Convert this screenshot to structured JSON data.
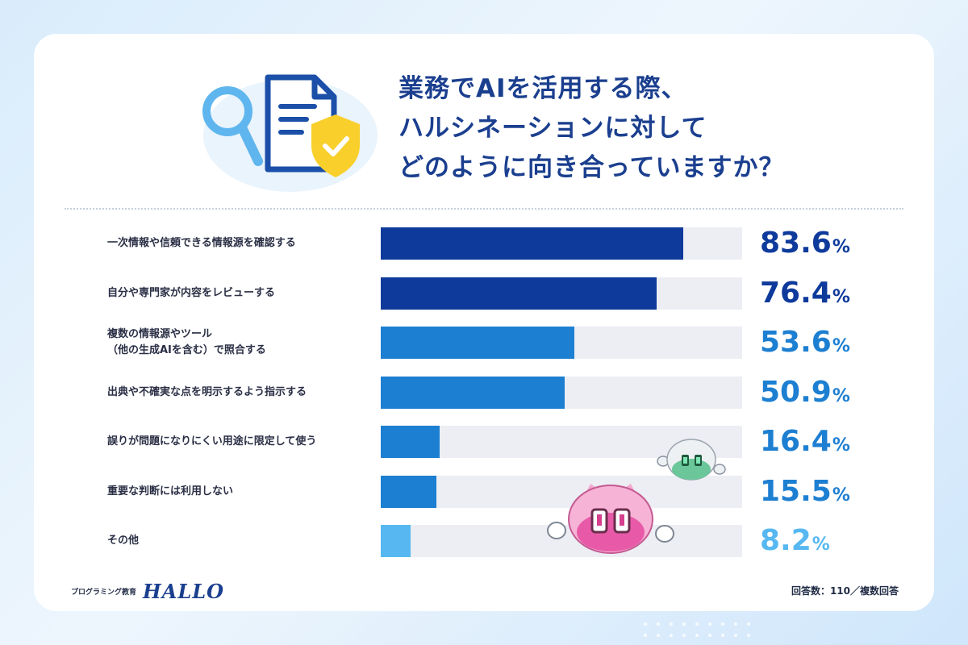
{
  "title": {
    "lines": [
      "業務でAIを活用する際、",
      "ハルシネーションに対して",
      "どのように向き合っていますか？"
    ]
  },
  "chart_data": {
    "type": "bar",
    "orientation": "horizontal",
    "categories": [
      [
        "一次情報や信頼できる情報源を確認する"
      ],
      [
        "自分や専門家が内容をレビューする"
      ],
      [
        "複数の情報源やツール",
        "（他の生成AIを含む）で照合する"
      ],
      [
        "出典や不確実な点を明示するよう指示する"
      ],
      [
        "誤りが問題になりにくい用途に限定して使う"
      ],
      [
        "重要な判断には利用しない"
      ],
      [
        "その他"
      ]
    ],
    "values": [
      83.6,
      76.4,
      53.6,
      50.9,
      16.4,
      15.5,
      8.2
    ],
    "value_labels": [
      "83.6",
      "76.4",
      "53.6",
      "50.9",
      "16.4",
      "15.5",
      "8.2"
    ],
    "unit": "%",
    "xlim": [
      0,
      100
    ],
    "colors": [
      "#0e3a9b",
      "#0e3a9b",
      "#1d7fd1",
      "#1d7fd1",
      "#1d7fd1",
      "#1d7fd1",
      "#57b8f1"
    ],
    "track_color": "#eceef3"
  },
  "footer": {
    "brand_small": "プログラミング教育",
    "brand_logo": "HALLO",
    "note": "回答数：110／複数回答"
  }
}
